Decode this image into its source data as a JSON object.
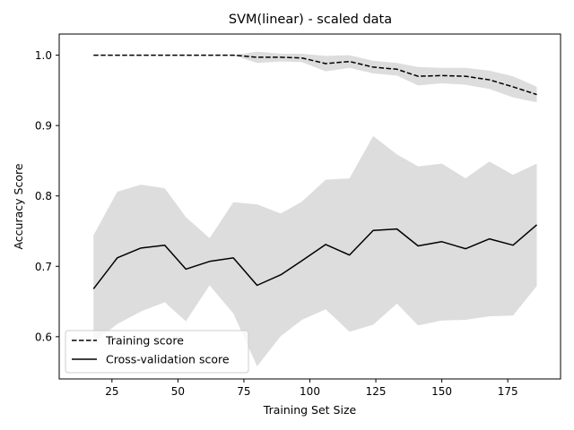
{
  "chart_data": {
    "type": "line",
    "title": "SVM(linear) - scaled data",
    "xlabel": "Training Set Size",
    "ylabel": "Accuracy Score",
    "xlim": [
      5,
      195
    ],
    "ylim": [
      0.54,
      1.03
    ],
    "xticks": [
      25,
      50,
      75,
      100,
      125,
      150,
      175
    ],
    "yticks": [
      0.6,
      0.7,
      0.8,
      0.9,
      1.0
    ],
    "xtick_labels": [
      "25",
      "50",
      "75",
      "100",
      "125",
      "150",
      "175"
    ],
    "ytick_labels": [
      "0.6",
      "0.7",
      "0.8",
      "0.9",
      "1.0"
    ],
    "grid": false,
    "legend_position": "lower-left",
    "band_color": "#dddddd",
    "x": [
      18,
      27,
      36,
      45,
      53,
      62,
      71,
      80,
      89,
      97,
      106,
      115,
      124,
      133,
      141,
      150,
      159,
      168,
      177,
      186
    ],
    "series": [
      {
        "name": "Training score",
        "style": "dashed",
        "color": "#000000",
        "values": [
          1.0,
          1.0,
          1.0,
          1.0,
          1.0,
          1.0,
          1.0,
          0.997,
          0.997,
          0.996,
          0.988,
          0.991,
          0.983,
          0.98,
          0.97,
          0.971,
          0.97,
          0.965,
          0.955,
          0.944
        ],
        "band_upper": [
          1.0,
          1.0,
          1.0,
          1.0,
          1.0,
          1.0,
          1.0,
          1.005,
          1.002,
          1.002,
          0.999,
          1.0,
          0.992,
          0.989,
          0.983,
          0.982,
          0.982,
          0.978,
          0.97,
          0.955
        ],
        "band_lower": [
          1.0,
          1.0,
          1.0,
          1.0,
          1.0,
          1.0,
          1.0,
          0.989,
          0.991,
          0.99,
          0.977,
          0.982,
          0.974,
          0.971,
          0.957,
          0.96,
          0.958,
          0.952,
          0.94,
          0.933
        ]
      },
      {
        "name": "Cross-validation score",
        "style": "solid",
        "color": "#000000",
        "values": [
          0.668,
          0.712,
          0.726,
          0.73,
          0.696,
          0.707,
          0.712,
          0.673,
          0.688,
          0.708,
          0.731,
          0.716,
          0.751,
          0.753,
          0.729,
          0.735,
          0.725,
          0.739,
          0.73,
          0.759
        ],
        "band_upper": [
          0.744,
          0.806,
          0.816,
          0.811,
          0.77,
          0.74,
          0.791,
          0.788,
          0.775,
          0.792,
          0.823,
          0.825,
          0.885,
          0.859,
          0.842,
          0.846,
          0.825,
          0.849,
          0.83,
          0.846
        ],
        "band_lower": [
          0.592,
          0.618,
          0.636,
          0.649,
          0.622,
          0.673,
          0.633,
          0.558,
          0.601,
          0.624,
          0.639,
          0.607,
          0.617,
          0.647,
          0.616,
          0.623,
          0.624,
          0.629,
          0.63,
          0.672
        ]
      }
    ]
  }
}
